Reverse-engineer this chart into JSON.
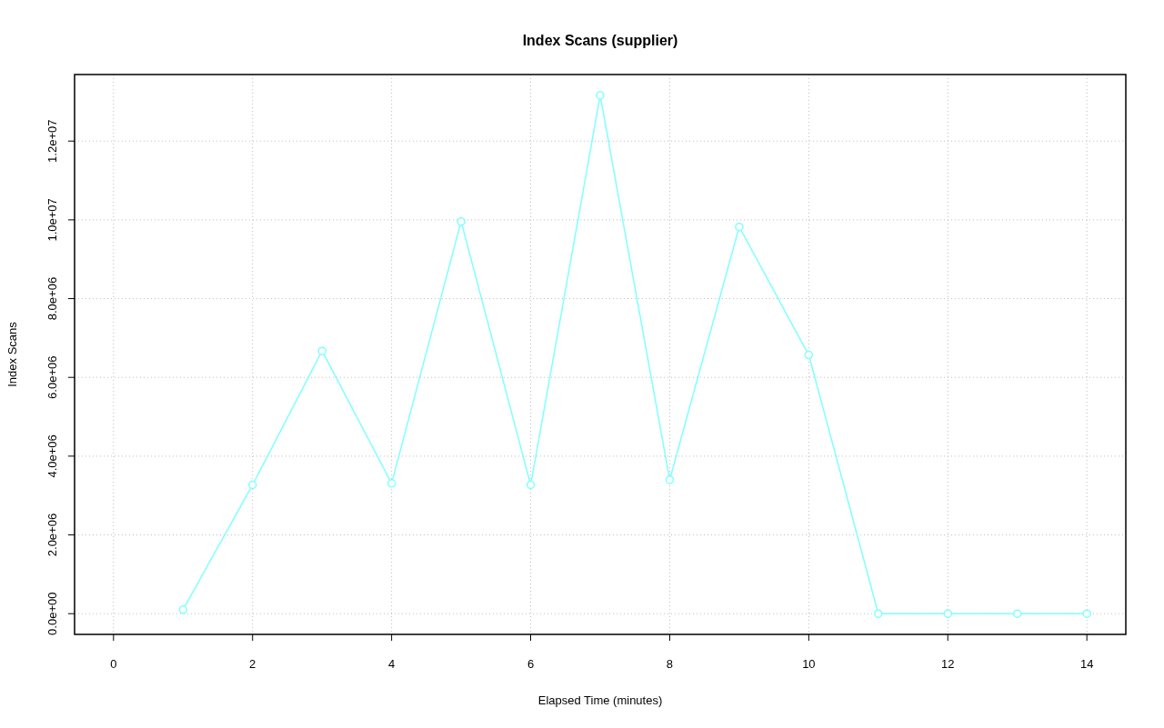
{
  "chart_data": {
    "type": "line",
    "title": "Index Scans (supplier)",
    "xlabel": "Elapsed Time (minutes)",
    "ylabel": "Index Scans",
    "x": [
      1,
      2,
      3,
      4,
      5,
      6,
      7,
      8,
      9,
      10,
      11,
      12,
      13,
      14
    ],
    "series": [
      {
        "color": "#80ffff",
        "values": [
          100000,
          3270000,
          6670000,
          3310000,
          9960000,
          3270000,
          13160000,
          3400000,
          9820000,
          6570000,
          0,
          0,
          0,
          0
        ]
      }
    ],
    "xlim": [
      -0.56,
      14.56
    ],
    "xticks": [
      0,
      2,
      4,
      6,
      8,
      10,
      12,
      14
    ],
    "ylim": [
      -526000,
      13690000
    ],
    "yticks": [
      {
        "value": 0,
        "label": "0.0e+00"
      },
      {
        "value": 2000000,
        "label": "2.0e+06"
      },
      {
        "value": 4000000,
        "label": "4.0e+06"
      },
      {
        "value": 6000000,
        "label": "6.0e+06"
      },
      {
        "value": 8000000,
        "label": "8.0e+06"
      },
      {
        "value": 10000000,
        "label": "1.0e+07"
      },
      {
        "value": 12000000,
        "label": "1.2e+07"
      }
    ],
    "grid": true,
    "marker": "circle",
    "line_style": "solid"
  }
}
